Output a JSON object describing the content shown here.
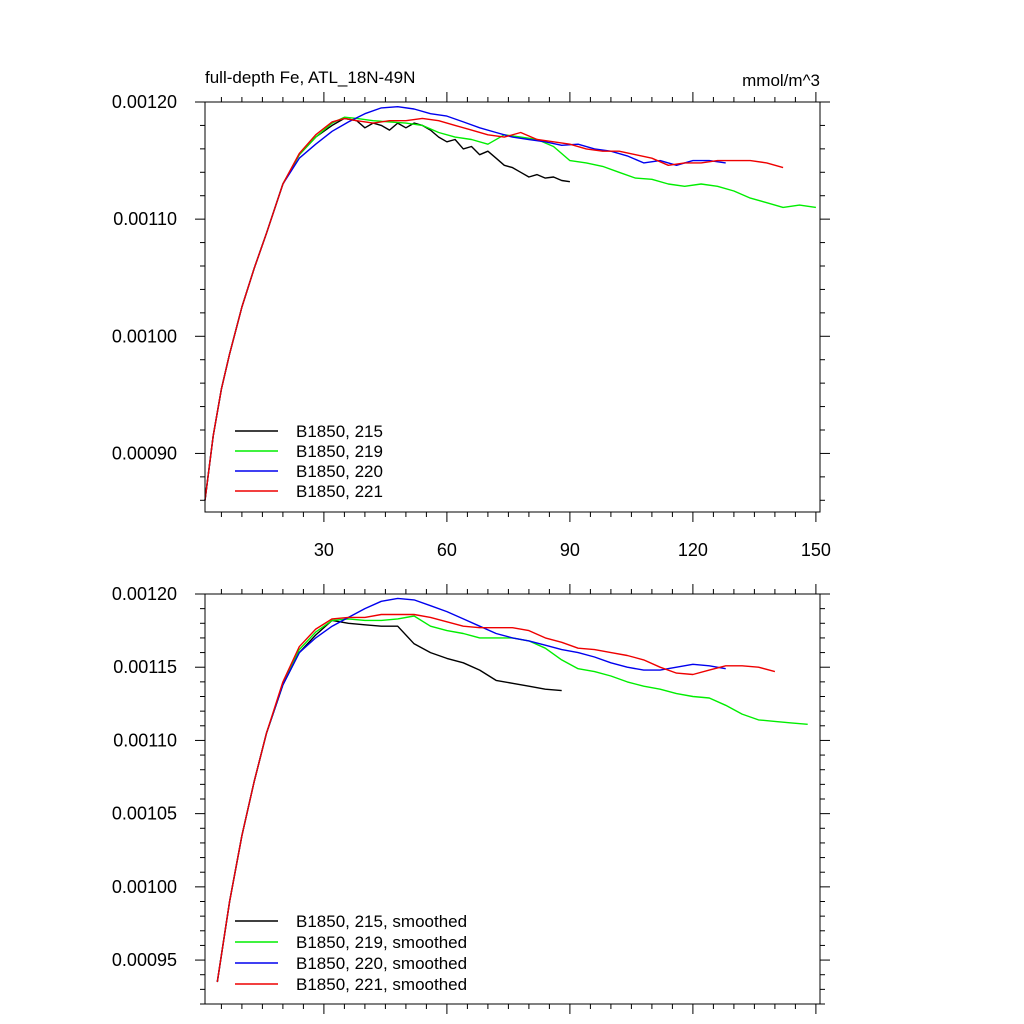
{
  "colors": {
    "black": "#000000",
    "green": "#00ee00",
    "blue": "#0000ee",
    "red": "#ee0000"
  },
  "chart_data": [
    {
      "type": "line",
      "title": "full-depth Fe, ATL_18N-49N",
      "units": "mmol/m^3",
      "xlim": [
        1,
        151
      ],
      "ylim": [
        0.00085,
        0.0012
      ],
      "xticks": [
        30,
        60,
        90,
        120,
        150
      ],
      "yticks": [
        0.0009,
        0.001,
        0.0011,
        0.0012
      ],
      "ytick_labels": [
        "0.00090",
        "0.00100",
        "0.00110",
        "0.00120"
      ],
      "show_xtick_labels": true,
      "legend": [
        "B1850, 215",
        "B1850, 219",
        "B1850, 220",
        "B1850, 221"
      ],
      "legend_position": "bottom-left",
      "series": [
        {
          "name": "B1850, 215",
          "color": "#000000",
          "x": [
            1,
            3,
            5,
            7,
            10,
            13,
            16,
            20,
            24,
            28,
            32,
            35,
            38,
            40,
            42,
            44,
            46,
            48,
            50,
            52,
            54,
            56,
            58,
            60,
            62,
            64,
            66,
            68,
            70,
            72,
            74,
            76,
            78,
            80,
            82,
            84,
            86,
            88,
            90
          ],
          "y": [
            0.00086,
            0.000915,
            0.000955,
            0.000985,
            0.001025,
            0.001058,
            0.001088,
            0.00113,
            0.001155,
            0.00117,
            0.00118,
            0.001186,
            0.001184,
            0.001178,
            0.001182,
            0.00118,
            0.001176,
            0.001182,
            0.001178,
            0.001182,
            0.00118,
            0.001176,
            0.00117,
            0.001166,
            0.001168,
            0.00116,
            0.001162,
            0.001155,
            0.001158,
            0.001152,
            0.001146,
            0.001144,
            0.00114,
            0.001136,
            0.001138,
            0.001135,
            0.001136,
            0.001133,
            0.001132
          ]
        },
        {
          "name": "B1850, 219",
          "color": "#00ee00",
          "x": [
            1,
            3,
            5,
            7,
            10,
            13,
            16,
            20,
            24,
            28,
            32,
            35,
            38,
            42,
            46,
            50,
            54,
            58,
            62,
            66,
            70,
            74,
            78,
            82,
            86,
            90,
            94,
            98,
            102,
            106,
            110,
            114,
            118,
            122,
            126,
            130,
            134,
            138,
            142,
            146,
            150
          ],
          "y": [
            0.00086,
            0.000915,
            0.000955,
            0.000985,
            0.001025,
            0.001058,
            0.001088,
            0.00113,
            0.001155,
            0.00117,
            0.001182,
            0.001187,
            0.001186,
            0.001184,
            0.001183,
            0.001182,
            0.00118,
            0.001174,
            0.00117,
            0.001168,
            0.001164,
            0.001172,
            0.00117,
            0.001168,
            0.001162,
            0.00115,
            0.001148,
            0.001145,
            0.00114,
            0.001135,
            0.001134,
            0.00113,
            0.001128,
            0.00113,
            0.001128,
            0.001124,
            0.001118,
            0.001114,
            0.00111,
            0.001112,
            0.00111
          ]
        },
        {
          "name": "B1850, 220",
          "color": "#0000ee",
          "x": [
            1,
            3,
            5,
            7,
            10,
            13,
            16,
            20,
            24,
            28,
            32,
            36,
            40,
            44,
            48,
            52,
            56,
            60,
            64,
            68,
            72,
            76,
            80,
            84,
            88,
            92,
            96,
            100,
            104,
            108,
            112,
            116,
            120,
            124,
            128
          ],
          "y": [
            0.00086,
            0.000915,
            0.000955,
            0.000985,
            0.001025,
            0.001058,
            0.001088,
            0.00113,
            0.001152,
            0.001164,
            0.001175,
            0.001183,
            0.00119,
            0.001195,
            0.001196,
            0.001194,
            0.00119,
            0.001188,
            0.001183,
            0.001178,
            0.001174,
            0.00117,
            0.001168,
            0.001166,
            0.001163,
            0.001164,
            0.00116,
            0.001158,
            0.001154,
            0.001148,
            0.00115,
            0.001146,
            0.00115,
            0.00115,
            0.001148
          ]
        },
        {
          "name": "B1850, 221",
          "color": "#ee0000",
          "x": [
            1,
            3,
            5,
            7,
            10,
            13,
            16,
            20,
            24,
            28,
            32,
            35,
            38,
            42,
            46,
            50,
            54,
            58,
            62,
            66,
            70,
            74,
            78,
            82,
            86,
            90,
            94,
            98,
            102,
            106,
            110,
            114,
            118,
            122,
            126,
            130,
            134,
            138,
            142
          ],
          "y": [
            0.00086,
            0.000915,
            0.000955,
            0.000985,
            0.001025,
            0.001058,
            0.001088,
            0.00113,
            0.001156,
            0.001172,
            0.001183,
            0.001186,
            0.001184,
            0.001182,
            0.001184,
            0.001184,
            0.001186,
            0.001184,
            0.00118,
            0.001176,
            0.001172,
            0.00117,
            0.001174,
            0.001168,
            0.001166,
            0.001164,
            0.00116,
            0.001158,
            0.001158,
            0.001155,
            0.001152,
            0.001146,
            0.001148,
            0.001148,
            0.00115,
            0.00115,
            0.00115,
            0.001148,
            0.001144
          ]
        }
      ]
    },
    {
      "type": "line",
      "xlim": [
        1,
        151
      ],
      "ylim": [
        0.00092,
        0.0012
      ],
      "xticks": [
        30,
        60,
        90,
        120,
        150
      ],
      "yticks": [
        0.00095,
        0.001,
        0.00105,
        0.0011,
        0.00115,
        0.0012
      ],
      "ytick_labels": [
        "0.00095",
        "0.00100",
        "0.00105",
        "0.00110",
        "0.00115",
        "0.00120"
      ],
      "show_xtick_labels": false,
      "legend": [
        "B1850, 215, smoothed",
        "B1850, 219, smoothed",
        "B1850, 220, smoothed",
        "B1850, 221, smoothed"
      ],
      "legend_position": "bottom-left",
      "series": [
        {
          "name": "B1850, 215, smoothed",
          "color": "#000000",
          "x": [
            4,
            7,
            10,
            13,
            16,
            20,
            24,
            28,
            32,
            36,
            40,
            44,
            48,
            52,
            56,
            60,
            64,
            68,
            72,
            76,
            80,
            84,
            88
          ],
          "y": [
            0.000935,
            0.00099,
            0.001035,
            0.001072,
            0.001105,
            0.001138,
            0.00116,
            0.001172,
            0.001182,
            0.00118,
            0.001179,
            0.001178,
            0.001178,
            0.001166,
            0.00116,
            0.001156,
            0.001153,
            0.001148,
            0.001141,
            0.001139,
            0.001137,
            0.001135,
            0.001134
          ]
        },
        {
          "name": "B1850, 219, smoothed",
          "color": "#00ee00",
          "x": [
            4,
            7,
            10,
            13,
            16,
            20,
            24,
            28,
            32,
            36,
            40,
            44,
            48,
            52,
            56,
            60,
            64,
            68,
            72,
            76,
            80,
            84,
            88,
            92,
            96,
            100,
            104,
            108,
            112,
            116,
            120,
            124,
            128,
            132,
            136,
            140,
            144,
            148
          ],
          "y": [
            0.000935,
            0.00099,
            0.001035,
            0.001072,
            0.001105,
            0.001138,
            0.001162,
            0.001174,
            0.001182,
            0.001183,
            0.001182,
            0.001182,
            0.001183,
            0.001185,
            0.001178,
            0.001175,
            0.001173,
            0.00117,
            0.00117,
            0.00117,
            0.001168,
            0.001163,
            0.001155,
            0.001149,
            0.001147,
            0.001144,
            0.00114,
            0.001137,
            0.001135,
            0.001132,
            0.00113,
            0.001129,
            0.001124,
            0.001118,
            0.001114,
            0.001113,
            0.001112,
            0.001111
          ]
        },
        {
          "name": "B1850, 220, smoothed",
          "color": "#0000ee",
          "x": [
            4,
            7,
            10,
            13,
            16,
            20,
            24,
            28,
            32,
            36,
            40,
            44,
            48,
            52,
            56,
            60,
            64,
            68,
            72,
            76,
            80,
            84,
            88,
            92,
            96,
            100,
            104,
            108,
            112,
            116,
            120,
            124,
            128
          ],
          "y": [
            0.000935,
            0.00099,
            0.001035,
            0.001072,
            0.001105,
            0.001138,
            0.00116,
            0.00117,
            0.001178,
            0.001184,
            0.00119,
            0.001195,
            0.001197,
            0.001196,
            0.001192,
            0.001188,
            0.001183,
            0.001178,
            0.001173,
            0.00117,
            0.001168,
            0.001165,
            0.001162,
            0.00116,
            0.001157,
            0.001153,
            0.00115,
            0.001148,
            0.001148,
            0.00115,
            0.001152,
            0.001151,
            0.001149
          ]
        },
        {
          "name": "B1850, 221, smoothed",
          "color": "#ee0000",
          "x": [
            4,
            7,
            10,
            13,
            16,
            20,
            24,
            28,
            32,
            36,
            40,
            44,
            48,
            52,
            56,
            60,
            64,
            68,
            72,
            76,
            80,
            84,
            88,
            92,
            96,
            100,
            104,
            108,
            112,
            116,
            120,
            124,
            128,
            132,
            136,
            140
          ],
          "y": [
            0.000935,
            0.00099,
            0.001035,
            0.001072,
            0.001105,
            0.00114,
            0.001164,
            0.001176,
            0.001183,
            0.001184,
            0.001184,
            0.001186,
            0.001186,
            0.001186,
            0.001184,
            0.001181,
            0.001178,
            0.001177,
            0.001177,
            0.001177,
            0.001175,
            0.00117,
            0.001167,
            0.001163,
            0.001162,
            0.00116,
            0.001158,
            0.001155,
            0.00115,
            0.001146,
            0.001145,
            0.001148,
            0.001151,
            0.001151,
            0.00115,
            0.001147
          ]
        }
      ]
    }
  ]
}
